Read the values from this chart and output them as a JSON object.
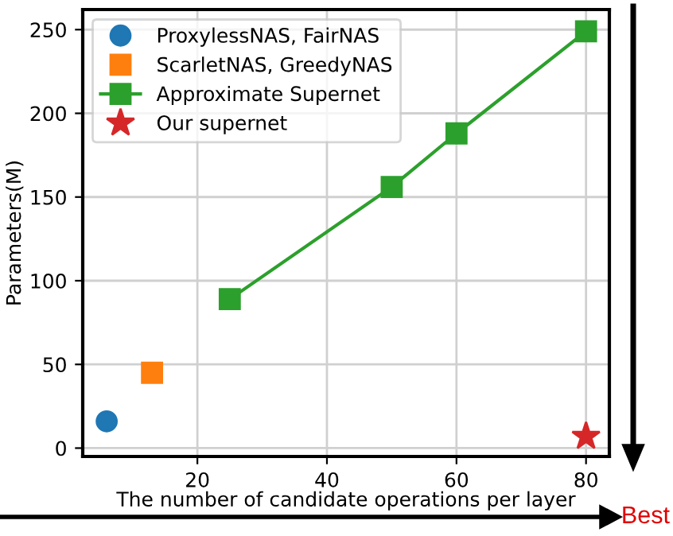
{
  "chart_data": {
    "type": "scatter",
    "xlabel": "The number of candidate operations per layer",
    "ylabel": "Parameters(M)",
    "series": [
      {
        "name": "ProxylessNAS, FairNAS",
        "marker": "circle",
        "color": "#1f77b4",
        "x": [
          6
        ],
        "values": [
          16
        ]
      },
      {
        "name": "ScarletNAS, GreedyNAS",
        "marker": "square",
        "color": "#ff7f0e",
        "x": [
          13
        ],
        "values": [
          45
        ]
      },
      {
        "name": "Approximate Supernet",
        "type": "line",
        "marker": "square",
        "color": "#2ca02c",
        "x": [
          25,
          50,
          60,
          80
        ],
        "values": [
          89,
          156,
          188,
          249
        ]
      },
      {
        "name": "Our supernet",
        "marker": "star",
        "color": "#d62728",
        "x": [
          80
        ],
        "values": [
          7
        ]
      }
    ],
    "xlim": [
      2.3,
      83.6
    ],
    "ylim": [
      -5,
      262
    ],
    "xticks": [
      20,
      40,
      60,
      80
    ],
    "yticks": [
      0,
      50,
      100,
      150,
      200,
      250
    ],
    "grid": true,
    "legend": "top left",
    "annotations": [
      "Best"
    ]
  }
}
